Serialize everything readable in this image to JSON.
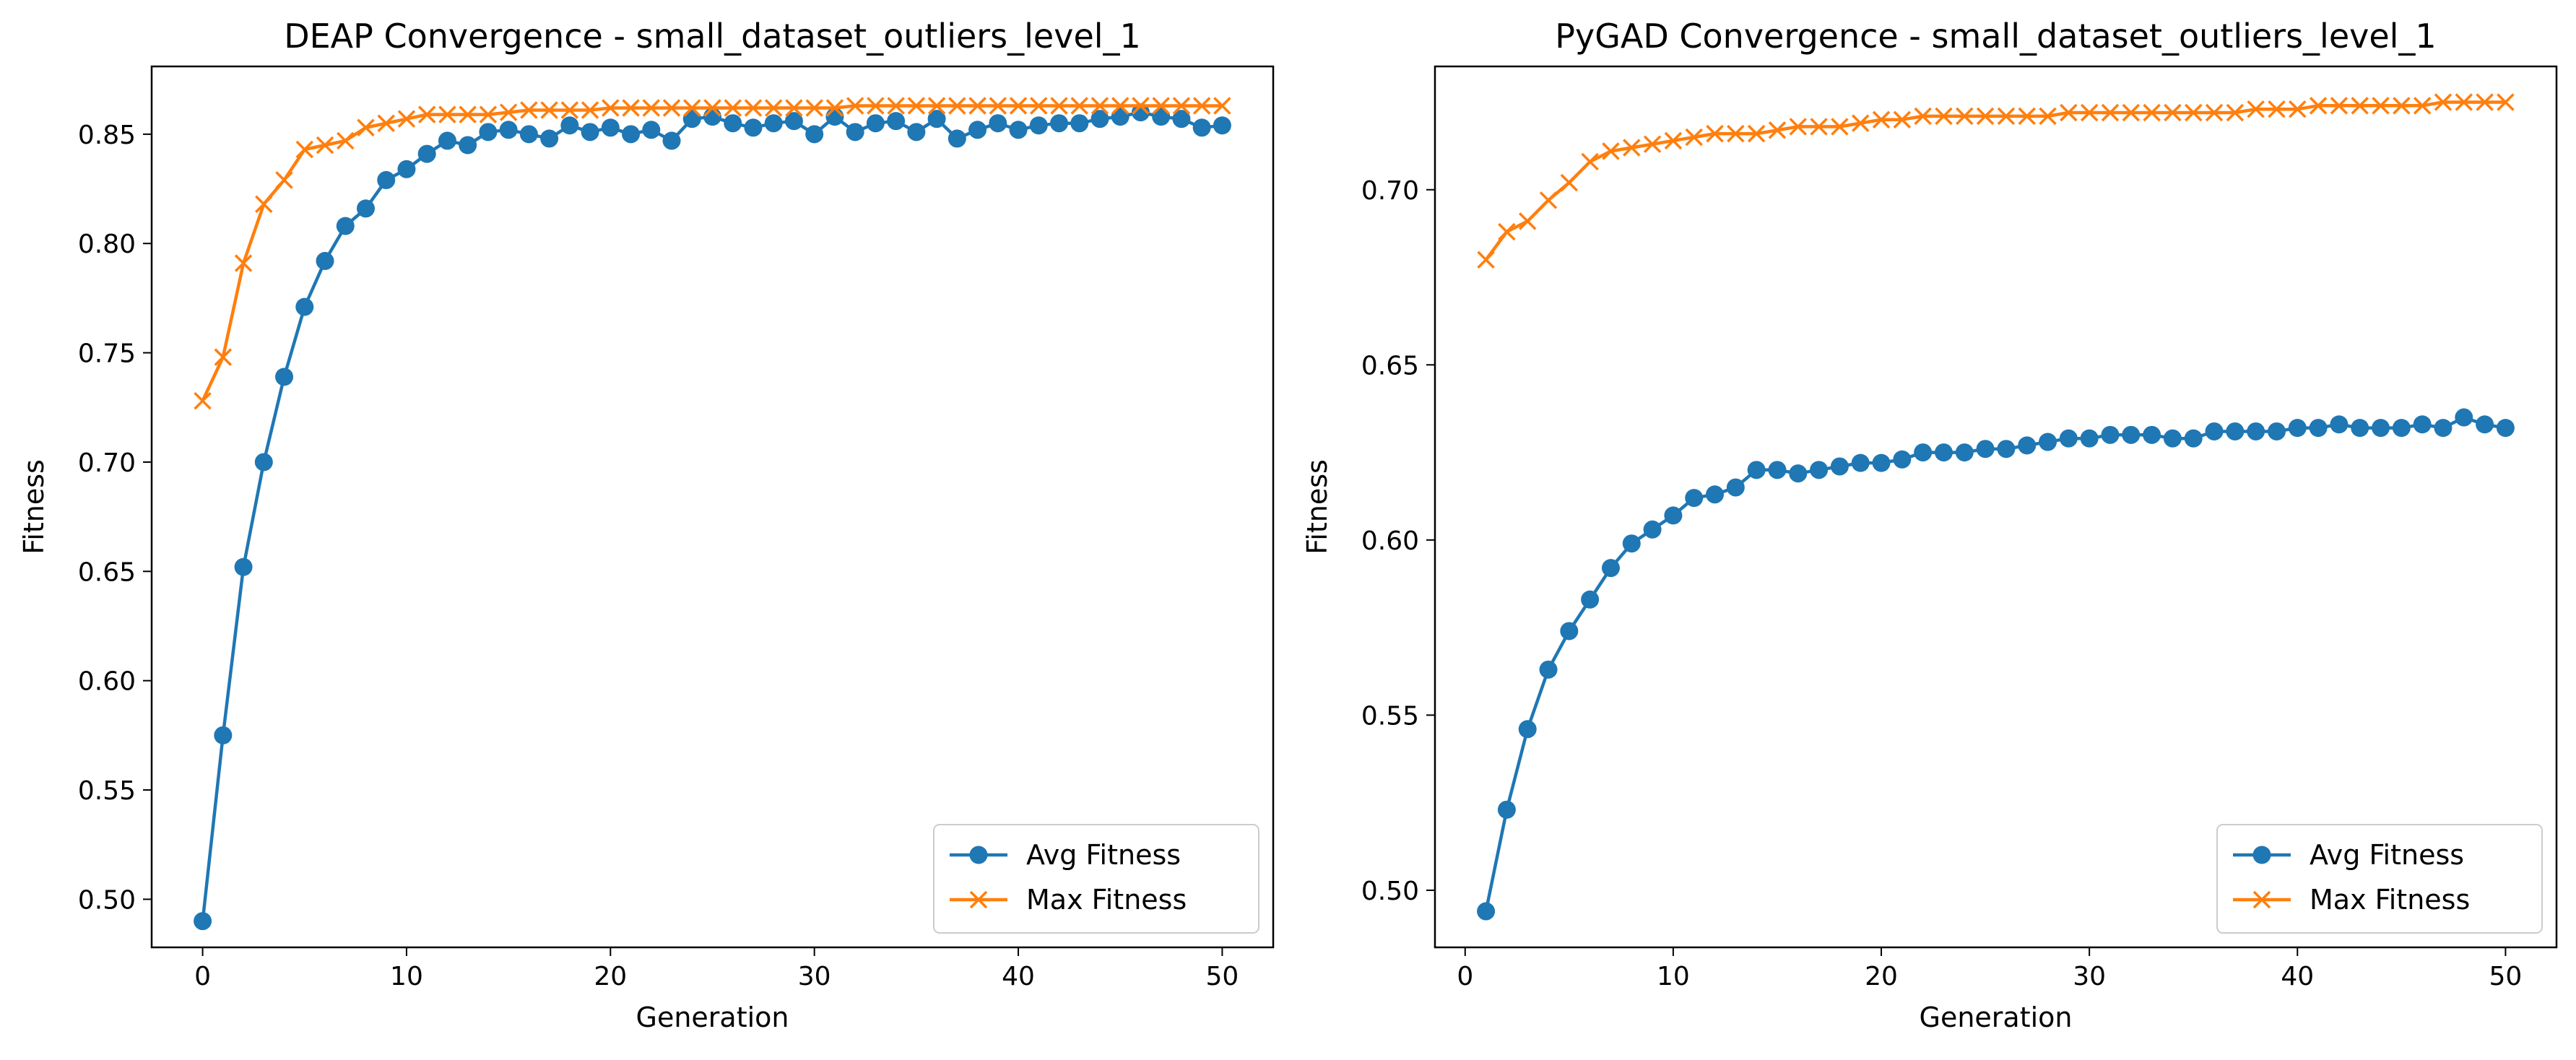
{
  "colors": {
    "avg": "#1f77b4",
    "max": "#ff7f0e"
  },
  "chart_data": [
    {
      "type": "line",
      "title": "DEAP Convergence - small_dataset_outliers_level_1",
      "xlabel": "Generation",
      "ylabel": "Fitness",
      "xlim": [
        -2.5,
        52.5
      ],
      "ylim": [
        0.478,
        0.881
      ],
      "xticks": [
        0,
        10,
        20,
        30,
        40,
        50
      ],
      "xtick_labels": [
        "0",
        "10",
        "20",
        "30",
        "40",
        "50"
      ],
      "yticks": [
        0.5,
        0.55,
        0.6,
        0.65,
        0.7,
        0.75,
        0.8,
        0.85
      ],
      "ytick_labels": [
        "0.50",
        "0.55",
        "0.60",
        "0.65",
        "0.70",
        "0.75",
        "0.80",
        "0.85"
      ],
      "grid": false,
      "legend_position": "lower-right",
      "x": [
        0,
        1,
        2,
        3,
        4,
        5,
        6,
        7,
        8,
        9,
        10,
        11,
        12,
        13,
        14,
        15,
        16,
        17,
        18,
        19,
        20,
        21,
        22,
        23,
        24,
        25,
        26,
        27,
        28,
        29,
        30,
        31,
        32,
        33,
        34,
        35,
        36,
        37,
        38,
        39,
        40,
        41,
        42,
        43,
        44,
        45,
        46,
        47,
        48,
        49,
        50
      ],
      "series": [
        {
          "name": "Avg Fitness",
          "marker": "circle",
          "values": [
            0.49,
            0.575,
            0.652,
            0.7,
            0.739,
            0.771,
            0.792,
            0.808,
            0.816,
            0.829,
            0.834,
            0.841,
            0.847,
            0.845,
            0.851,
            0.852,
            0.85,
            0.848,
            0.854,
            0.851,
            0.853,
            0.85,
            0.852,
            0.847,
            0.857,
            0.858,
            0.855,
            0.853,
            0.855,
            0.856,
            0.85,
            0.858,
            0.851,
            0.855,
            0.856,
            0.851,
            0.857,
            0.848,
            0.852,
            0.855,
            0.852,
            0.854,
            0.855,
            0.855,
            0.857,
            0.858,
            0.86,
            0.858,
            0.857,
            0.853,
            0.854
          ]
        },
        {
          "name": "Max Fitness",
          "marker": "x",
          "values": [
            0.728,
            0.748,
            0.791,
            0.818,
            0.829,
            0.843,
            0.845,
            0.847,
            0.853,
            0.855,
            0.857,
            0.859,
            0.859,
            0.859,
            0.859,
            0.86,
            0.861,
            0.861,
            0.861,
            0.861,
            0.862,
            0.862,
            0.862,
            0.862,
            0.862,
            0.862,
            0.862,
            0.862,
            0.862,
            0.862,
            0.862,
            0.862,
            0.863,
            0.863,
            0.863,
            0.863,
            0.863,
            0.863,
            0.863,
            0.863,
            0.863,
            0.863,
            0.863,
            0.863,
            0.863,
            0.863,
            0.863,
            0.863,
            0.863,
            0.863,
            0.863
          ]
        }
      ]
    },
    {
      "type": "line",
      "title": "PyGAD Convergence - small_dataset_outliers_level_1",
      "xlabel": "Generation",
      "ylabel": "Fitness",
      "xlim": [
        -1.45,
        52.45
      ],
      "ylim": [
        0.4837,
        0.7352
      ],
      "xticks": [
        0,
        10,
        20,
        30,
        40,
        50
      ],
      "xtick_labels": [
        "0",
        "10",
        "20",
        "30",
        "40",
        "50"
      ],
      "yticks": [
        0.5,
        0.55,
        0.6,
        0.65,
        0.7
      ],
      "ytick_labels": [
        "0.50",
        "0.55",
        "0.60",
        "0.65",
        "0.70"
      ],
      "grid": false,
      "legend_position": "lower-right",
      "x": [
        1,
        2,
        3,
        4,
        5,
        6,
        7,
        8,
        9,
        10,
        11,
        12,
        13,
        14,
        15,
        16,
        17,
        18,
        19,
        20,
        21,
        22,
        23,
        24,
        25,
        26,
        27,
        28,
        29,
        30,
        31,
        32,
        33,
        34,
        35,
        36,
        37,
        38,
        39,
        40,
        41,
        42,
        43,
        44,
        45,
        46,
        47,
        48,
        49,
        50
      ],
      "series": [
        {
          "name": "Avg Fitness",
          "marker": "circle",
          "values": [
            0.494,
            0.523,
            0.546,
            0.563,
            0.574,
            0.583,
            0.592,
            0.599,
            0.603,
            0.607,
            0.612,
            0.613,
            0.615,
            0.62,
            0.62,
            0.619,
            0.62,
            0.621,
            0.622,
            0.622,
            0.623,
            0.625,
            0.625,
            0.625,
            0.626,
            0.626,
            0.627,
            0.628,
            0.629,
            0.629,
            0.63,
            0.63,
            0.63,
            0.629,
            0.629,
            0.631,
            0.631,
            0.631,
            0.631,
            0.632,
            0.632,
            0.633,
            0.632,
            0.632,
            0.632,
            0.633,
            0.632,
            0.635,
            0.633,
            0.632
          ]
        },
        {
          "name": "Max Fitness",
          "marker": "x",
          "values": [
            0.68,
            0.688,
            0.691,
            0.697,
            0.702,
            0.708,
            0.711,
            0.712,
            0.713,
            0.714,
            0.715,
            0.716,
            0.716,
            0.716,
            0.717,
            0.718,
            0.718,
            0.718,
            0.719,
            0.72,
            0.72,
            0.721,
            0.721,
            0.721,
            0.721,
            0.721,
            0.721,
            0.721,
            0.722,
            0.722,
            0.722,
            0.722,
            0.722,
            0.722,
            0.722,
            0.722,
            0.722,
            0.723,
            0.723,
            0.723,
            0.724,
            0.724,
            0.724,
            0.724,
            0.724,
            0.724,
            0.725,
            0.725,
            0.725,
            0.725
          ]
        }
      ]
    }
  ]
}
